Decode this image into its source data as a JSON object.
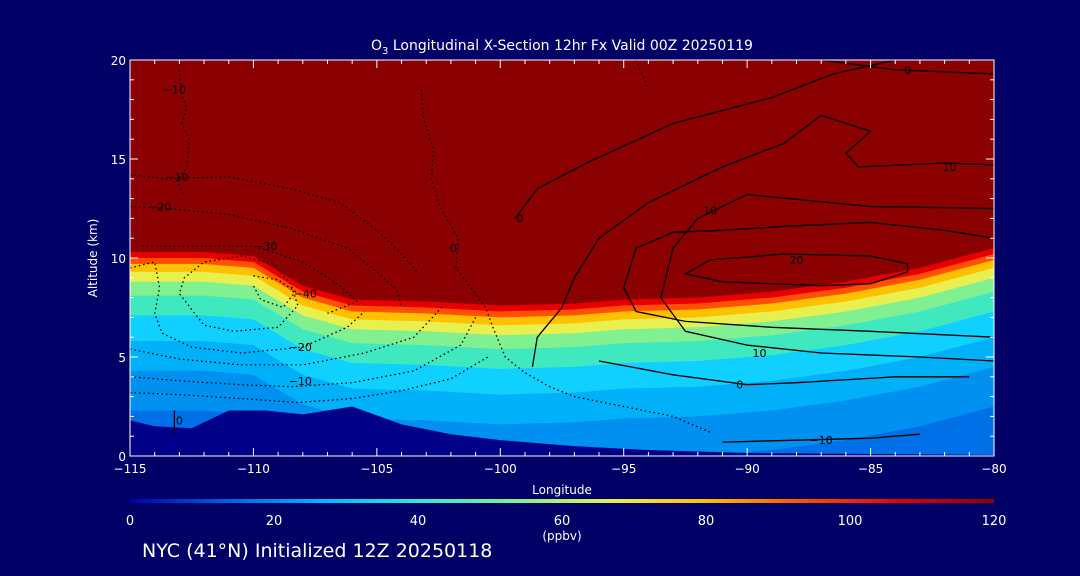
{
  "chart_data": {
    "type": "heatmap",
    "title_prefix": "O",
    "title_sub": "3",
    "title_rest": " Longitudinal X-Section 12hr  Fx Valid 00Z 20250119",
    "xlabel": "Longitude",
    "ylabel": "Altitude (km)",
    "xlim": [
      -115,
      -80
    ],
    "ylim": [
      0,
      20
    ],
    "x_ticks": [
      -115,
      -110,
      -105,
      -100,
      -95,
      -90,
      -85,
      -80
    ],
    "x_tick_labels": [
      "−115",
      "−110",
      "−105",
      "−100",
      "−95",
      "−90",
      "−85",
      "−80"
    ],
    "y_ticks": [
      0,
      5,
      10,
      15,
      20
    ],
    "y_tick_labels": [
      "0",
      "5",
      "10",
      "15",
      "20"
    ],
    "colorbar": {
      "label": "(ppbv)",
      "range": [
        0,
        120
      ],
      "ticks": [
        0,
        20,
        40,
        60,
        80,
        100,
        120
      ],
      "tick_labels": [
        "0",
        "20",
        "40",
        "60",
        "80",
        "100",
        "120"
      ],
      "colors": [
        "#0000aa",
        "#0060e0",
        "#00b8ff",
        "#30e8d8",
        "#80f090",
        "#e8f050",
        "#ffc000",
        "#ff5000",
        "#e80000",
        "#8b0000"
      ]
    },
    "tropopause_height_km": [
      {
        "lon": -115,
        "alt": 10.3
      },
      {
        "lon": -112,
        "alt": 10.3
      },
      {
        "lon": -110,
        "alt": 10.1
      },
      {
        "lon": -108,
        "alt": 8.6
      },
      {
        "lon": -106,
        "alt": 7.9
      },
      {
        "lon": -103,
        "alt": 7.8
      },
      {
        "lon": -100,
        "alt": 7.6
      },
      {
        "lon": -97,
        "alt": 7.7
      },
      {
        "lon": -95,
        "alt": 7.9
      },
      {
        "lon": -92,
        "alt": 8.0
      },
      {
        "lon": -89,
        "alt": 8.3
      },
      {
        "lon": -86,
        "alt": 8.8
      },
      {
        "lon": -83,
        "alt": 9.5
      },
      {
        "lon": -80,
        "alt": 10.5
      }
    ],
    "terrain_km": [
      {
        "lon": -115,
        "alt": 1.8
      },
      {
        "lon": -114,
        "alt": 1.5
      },
      {
        "lon": -112.5,
        "alt": 1.4
      },
      {
        "lon": -111,
        "alt": 2.3
      },
      {
        "lon": -109.5,
        "alt": 2.3
      },
      {
        "lon": -108,
        "alt": 2.1
      },
      {
        "lon": -106,
        "alt": 2.5
      },
      {
        "lon": -104,
        "alt": 1.6
      },
      {
        "lon": -102,
        "alt": 1.1
      },
      {
        "lon": -100,
        "alt": 0.8
      },
      {
        "lon": -97,
        "alt": 0.5
      },
      {
        "lon": -94,
        "alt": 0.3
      },
      {
        "lon": -90,
        "alt": 0.15
      },
      {
        "lon": -85,
        "alt": 0.1
      },
      {
        "lon": -80,
        "alt": 0.05
      }
    ],
    "contour_labels": [
      {
        "text": "0",
        "lon": -83.5,
        "alt": 19.5
      },
      {
        "text": "10",
        "lon": -81.8,
        "alt": 14.6
      },
      {
        "text": "10",
        "lon": -91.5,
        "alt": 12.4
      },
      {
        "text": "20",
        "lon": -88,
        "alt": 9.9
      },
      {
        "text": "0",
        "lon": -99.2,
        "alt": 12.0
      },
      {
        "text": "10",
        "lon": -89.5,
        "alt": 5.2
      },
      {
        "text": "0",
        "lon": -90.3,
        "alt": 3.6
      },
      {
        "text": "−10",
        "lon": -87,
        "alt": 0.8
      },
      {
        "text": "−10",
        "lon": -113.2,
        "alt": 18.5
      },
      {
        "text": "−10",
        "lon": -113.1,
        "alt": 14.1
      },
      {
        "text": "−20",
        "lon": -113.8,
        "alt": 12.6
      },
      {
        "text": "−30",
        "lon": -109.5,
        "alt": 10.6
      },
      {
        "text": "−40",
        "lon": -107.9,
        "alt": 8.2
      },
      {
        "text": "−20",
        "lon": -108.1,
        "alt": 5.5
      },
      {
        "text": "−10",
        "lon": -108.1,
        "alt": 3.8
      },
      {
        "text": "0",
        "lon": -101.9,
        "alt": 10.5
      },
      {
        "text": "0",
        "lon": -113.0,
        "alt": 1.8
      }
    ]
  },
  "footer": "NYC (41°N) Initialized 12Z 20250118"
}
